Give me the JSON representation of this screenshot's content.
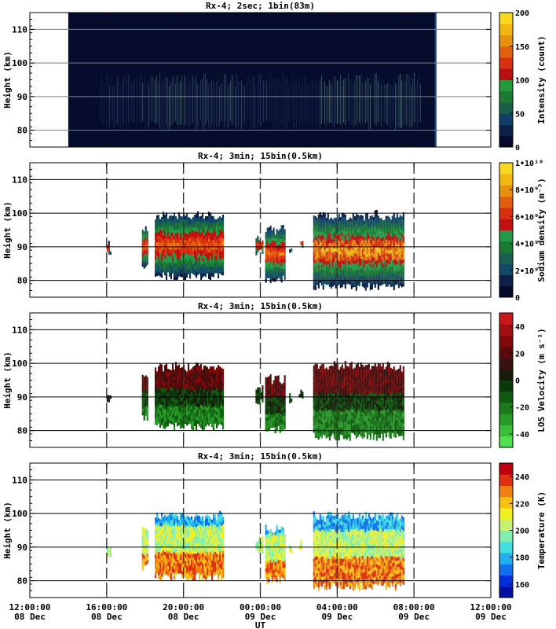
{
  "chart_data": [
    {
      "type": "heatmap",
      "title": "Rx-4;  2sec; 1bin(83m)",
      "ylabel": "Height (km)",
      "ylim": [
        75,
        115
      ],
      "yticks": [
        80,
        90,
        100,
        110
      ],
      "colorbar": {
        "label": "Intensity (count)",
        "range": [
          0,
          200
        ],
        "ticks": [
          "0",
          "50",
          "100",
          "150",
          "200"
        ],
        "colors": [
          "#050a2a",
          "#0d2048",
          "#10406a",
          "#1a6048",
          "#1a7a30",
          "#229a38",
          "#b81010",
          "#d83010",
          "#e06010",
          "#e89010",
          "#f0b810",
          "#f8d820"
        ]
      },
      "data_coverage": [
        {
          "start": "2017-12-08 14:00:00",
          "end": "2017-12-09 09:10:00"
        }
      ],
      "layer_height_km": [
        80,
        97
      ]
    },
    {
      "type": "heatmap",
      "title": "Rx-4; 3min; 15bin(0.5km)",
      "ylabel": "Height (km)",
      "ylim": [
        75,
        115
      ],
      "yticks": [
        80,
        90,
        100,
        110
      ],
      "colorbar": {
        "label": "Sodium density (m⁻³)",
        "range": [
          0,
          10000000000
        ],
        "ticks": [
          "0",
          "2•10⁹",
          "4•10⁹",
          "6•10⁹",
          "8•10⁹",
          "1•10¹⁰"
        ],
        "colors": [
          "#050a2a",
          "#0d2048",
          "#124a6a",
          "#1a6050",
          "#1a7a30",
          "#229a48",
          "#c01010",
          "#d83010",
          "#e06010",
          "#e89010",
          "#f0b810",
          "#f8d820"
        ]
      },
      "data_segments": [
        {
          "start": "2017-12-08 16:00:00",
          "end": "2017-12-08 16:10:00",
          "bottom_km": 87,
          "top_km": 91
        },
        {
          "start": "2017-12-08 17:50:00",
          "end": "2017-12-08 18:05:00",
          "bottom_km": 83,
          "top_km": 96
        },
        {
          "start": "2017-12-08 18:30:00",
          "end": "2017-12-08 22:05:00",
          "bottom_km": 80,
          "top_km": 100
        },
        {
          "start": "2017-12-08 23:45:00",
          "end": "2017-12-09 00:05:00",
          "bottom_km": 87,
          "top_km": 93
        },
        {
          "start": "2017-12-09 00:15:00",
          "end": "2017-12-09 01:15:00",
          "bottom_km": 79,
          "top_km": 96
        },
        {
          "start": "2017-12-09 01:30:00",
          "end": "2017-12-09 01:35:00",
          "bottom_km": 88,
          "top_km": 91
        },
        {
          "start": "2017-12-09 02:00:00",
          "end": "2017-12-09 02:10:00",
          "bottom_km": 89,
          "top_km": 92
        },
        {
          "start": "2017-12-09 02:45:00",
          "end": "2017-12-09 07:25:00",
          "bottom_km": 77,
          "top_km": 100
        }
      ]
    },
    {
      "type": "heatmap",
      "title": "Rx-4; 3min; 15bin(0.5km)",
      "ylabel": "Height (km)",
      "ylim": [
        75,
        115
      ],
      "yticks": [
        80,
        90,
        100,
        110
      ],
      "colorbar": {
        "label": "LOS Velocity (m s⁻¹)",
        "range": [
          -50,
          50
        ],
        "ticks": [
          "-40",
          "-20",
          "0",
          "20",
          "40"
        ],
        "colors": [
          "#50e050",
          "#38c038",
          "#289a28",
          "#1a7a1a",
          "#105a10",
          "#0a3a0a",
          "#1a1a0a",
          "#3a1010",
          "#5a0a0a",
          "#800a0a",
          "#a01010",
          "#c81818"
        ]
      },
      "data_segments": [
        {
          "start": "2017-12-08 16:00:00",
          "end": "2017-12-08 16:10:00",
          "bottom_km": 87,
          "top_km": 91
        },
        {
          "start": "2017-12-08 17:50:00",
          "end": "2017-12-08 18:05:00",
          "bottom_km": 83,
          "top_km": 96
        },
        {
          "start": "2017-12-08 18:30:00",
          "end": "2017-12-08 22:05:00",
          "bottom_km": 80,
          "top_km": 100
        },
        {
          "start": "2017-12-08 23:45:00",
          "end": "2017-12-09 00:05:00",
          "bottom_km": 87,
          "top_km": 93
        },
        {
          "start": "2017-12-09 00:15:00",
          "end": "2017-12-09 01:15:00",
          "bottom_km": 79,
          "top_km": 96
        },
        {
          "start": "2017-12-09 01:30:00",
          "end": "2017-12-09 01:35:00",
          "bottom_km": 88,
          "top_km": 91
        },
        {
          "start": "2017-12-09 02:00:00",
          "end": "2017-12-09 02:10:00",
          "bottom_km": 89,
          "top_km": 92
        },
        {
          "start": "2017-12-09 02:45:00",
          "end": "2017-12-09 07:25:00",
          "bottom_km": 77,
          "top_km": 100
        }
      ]
    },
    {
      "type": "heatmap",
      "title": "Rx-4; 3min; 15bin(0.5km)",
      "ylabel": "Height (km)",
      "xlabel": "UT",
      "ylim": [
        75,
        115
      ],
      "yticks": [
        80,
        90,
        100,
        110
      ],
      "colorbar": {
        "label": "Temperature (K)",
        "range": [
          150,
          250
        ],
        "ticks": [
          "160",
          "180",
          "200",
          "220",
          "240"
        ],
        "colors": [
          "#0010a0",
          "#0030e0",
          "#1070f0",
          "#20b0f0",
          "#40e0e0",
          "#80f0b0",
          "#c8f070",
          "#f0f020",
          "#f8c010",
          "#f08010",
          "#e03010",
          "#c00010"
        ]
      },
      "data_segments": [
        {
          "start": "2017-12-08 16:00:00",
          "end": "2017-12-08 16:10:00",
          "bottom_km": 87,
          "top_km": 91
        },
        {
          "start": "2017-12-08 17:50:00",
          "end": "2017-12-08 18:05:00",
          "bottom_km": 83,
          "top_km": 96
        },
        {
          "start": "2017-12-08 18:30:00",
          "end": "2017-12-08 22:05:00",
          "bottom_km": 80,
          "top_km": 100
        },
        {
          "start": "2017-12-08 23:45:00",
          "end": "2017-12-09 00:05:00",
          "bottom_km": 87,
          "top_km": 93
        },
        {
          "start": "2017-12-09 00:15:00",
          "end": "2017-12-09 01:15:00",
          "bottom_km": 79,
          "top_km": 96
        },
        {
          "start": "2017-12-09 01:30:00",
          "end": "2017-12-09 01:35:00",
          "bottom_km": 88,
          "top_km": 91
        },
        {
          "start": "2017-12-09 02:00:00",
          "end": "2017-12-09 02:10:00",
          "bottom_km": 89,
          "top_km": 92
        },
        {
          "start": "2017-12-09 02:45:00",
          "end": "2017-12-09 07:25:00",
          "bottom_km": 77,
          "top_km": 100
        }
      ]
    }
  ],
  "x_axis": {
    "label": "UT",
    "range": [
      "2017-12-08 12:00:00",
      "2017-12-09 12:00:00"
    ],
    "ticks": [
      {
        "time": "12:00:00",
        "date": "08 Dec"
      },
      {
        "time": "16:00:00",
        "date": "08 Dec"
      },
      {
        "time": "20:00:00",
        "date": "08 Dec"
      },
      {
        "time": "00:00:00",
        "date": "09 Dec"
      },
      {
        "time": "04:00:00",
        "date": "09 Dec"
      },
      {
        "time": "08:00:00",
        "date": "09 Dec"
      },
      {
        "time": "12:00:00",
        "date": "09 Dec"
      }
    ],
    "dashed_marks": [
      "2017-12-08 16:00:00",
      "2017-12-08 20:00:00",
      "2017-12-09 00:00:00",
      "2017-12-09 04:00:00",
      "2017-12-09 08:00:00"
    ]
  }
}
